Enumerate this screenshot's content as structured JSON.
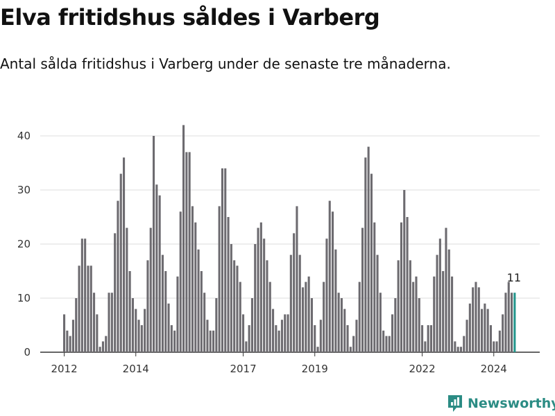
{
  "title": "Elva fritidshus såldes i Varberg",
  "subtitle": "Antal sålda fritidshus i Varberg under de senaste tre månaderna.",
  "brand": {
    "name": "Newsworthy"
  },
  "colors": {
    "bar": "#6d6b70",
    "highlight": "#23968c",
    "grid": "#dddddd",
    "axis": "#333333"
  },
  "chart_data": {
    "type": "bar",
    "x_tick_labels": [
      "2012",
      "2014",
      "2017",
      "2019",
      "2022",
      "2024"
    ],
    "y_ticks": [
      0,
      10,
      20,
      30,
      40
    ],
    "ylim": [
      0,
      43
    ],
    "grid": true,
    "annotation": {
      "label": "11"
    },
    "values": [
      7,
      4,
      3,
      6,
      10,
      16,
      21,
      21,
      16,
      16,
      11,
      7,
      1,
      2,
      3,
      11,
      11,
      22,
      28,
      33,
      36,
      23,
      15,
      10,
      8,
      6,
      5,
      8,
      17,
      23,
      40,
      31,
      29,
      18,
      15,
      9,
      5,
      4,
      14,
      26,
      42,
      37,
      37,
      27,
      24,
      19,
      15,
      11,
      6,
      4,
      4,
      10,
      27,
      34,
      34,
      25,
      20,
      17,
      16,
      13,
      7,
      2,
      5,
      10,
      20,
      23,
      24,
      21,
      17,
      13,
      8,
      5,
      4,
      6,
      7,
      7,
      18,
      22,
      27,
      18,
      12,
      13,
      14,
      10,
      5,
      1,
      6,
      13,
      21,
      28,
      26,
      19,
      11,
      10,
      8,
      5,
      1,
      3,
      6,
      13,
      23,
      36,
      38,
      33,
      24,
      18,
      11,
      4,
      3,
      3,
      7,
      10,
      17,
      24,
      30,
      25,
      17,
      13,
      14,
      10,
      5,
      2,
      5,
      5,
      14,
      18,
      21,
      15,
      23,
      19,
      14,
      2,
      1,
      1,
      3,
      6,
      9,
      12,
      13,
      12,
      8,
      9,
      8,
      5,
      2,
      2,
      4,
      7,
      11,
      13,
      11,
      11
    ]
  }
}
